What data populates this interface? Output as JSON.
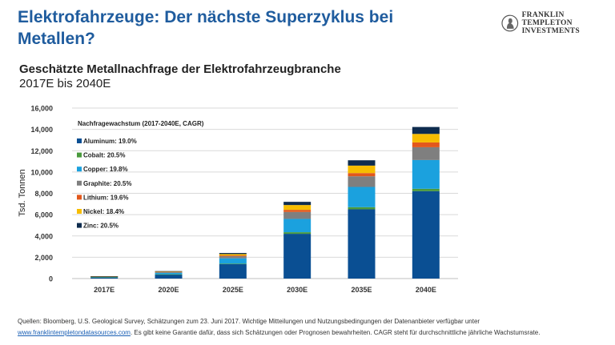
{
  "header": {
    "title": "Elektrofahrzeuge: Der nächste Superzyklus bei Metallen?",
    "logo_line1": "FRANKLIN TEMPLETON",
    "logo_line2": "INVESTMENTS"
  },
  "chart_data": {
    "type": "bar",
    "stacked": true,
    "title": "Geschätzte Metallnachfrage der Elektrofahrzeugbranche",
    "subtitle": "2017E bis 2040E",
    "ylabel": "Tsd. Tonnen",
    "xlabel": "",
    "ylim": [
      0,
      16000
    ],
    "yticks": [
      "0",
      "2,000",
      "4,000",
      "6,000",
      "8,000",
      "10,000",
      "12,000",
      "14,000",
      "16,000"
    ],
    "grid": true,
    "legend_title": "Nachfragewachstum  (2017-2040E,  CAGR)",
    "legend_position": "top-left",
    "categories": [
      "2017E",
      "2020E",
      "2025E",
      "2030E",
      "2035E",
      "2040E"
    ],
    "series": [
      {
        "name": "Aluminum: 19.0%",
        "color": "#0a4f93",
        "values": [
          130,
          380,
          1350,
          4200,
          6500,
          8200
        ]
      },
      {
        "name": "Cobalt: 20.5%",
        "color": "#4a9a3d",
        "values": [
          5,
          20,
          50,
          150,
          200,
          225
        ]
      },
      {
        "name": "Copper: 19.8%",
        "color": "#1ba1de",
        "values": [
          50,
          150,
          500,
          1250,
          1900,
          2700
        ]
      },
      {
        "name": "Graphite: 20.5%",
        "color": "#7f7f7f",
        "values": [
          15,
          60,
          200,
          650,
          1000,
          1200
        ]
      },
      {
        "name": "Lithium: 19.6%",
        "color": "#e2581c",
        "values": [
          5,
          20,
          70,
          200,
          300,
          450
        ]
      },
      {
        "name": "Nickel: 18.4%",
        "color": "#f7bd00",
        "values": [
          10,
          40,
          130,
          450,
          700,
          800
        ]
      },
      {
        "name": "Zinc: 20.5%",
        "color": "#0e2c4e",
        "values": [
          5,
          30,
          100,
          300,
          500,
          650
        ]
      }
    ]
  },
  "footer": {
    "line1": "Quellen: Bloomberg, U.S. Geological Survey, Schätzungen zum 23. Juni 2017. Wichtige Mitteilungen und Nutzungsbedingungen der Datenanbieter verfügbar unter",
    "link": "www.franklintempletondatasources.com",
    "line2": ". Es gibt keine Garantie dafür, dass sich Schätzungen oder Prognosen bewahrheiten. CAGR steht für durchschnittliche jährliche Wachstumsrate."
  }
}
